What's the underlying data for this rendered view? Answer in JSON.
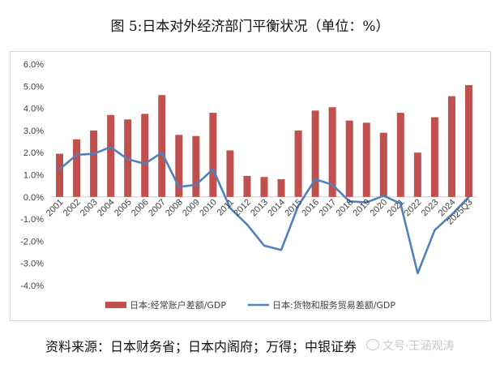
{
  "figure": {
    "title": "图 5:日本对外经济部门平衡状况（单位：%）",
    "source": "资料来源：日本财务省；日本内阁府；万得；中银证券",
    "watermark": "文号·王涵观涛"
  },
  "chart_data": {
    "type": "bar+line",
    "categories": [
      "2001",
      "2002",
      "2003",
      "2004",
      "2005",
      "2006",
      "2007",
      "2008",
      "2009",
      "2010",
      "2011",
      "2012",
      "2013",
      "2014",
      "2015",
      "2016",
      "2017",
      "2018",
      "2019",
      "2020",
      "2021",
      "2022",
      "2023",
      "2024",
      "2025Q3"
    ],
    "series": [
      {
        "name": "日本:经常账户差额/GDP",
        "type": "bar",
        "color": "#c0504d",
        "values": [
          1.95,
          2.6,
          3.0,
          3.7,
          3.5,
          3.75,
          4.6,
          2.8,
          2.75,
          3.8,
          2.1,
          0.95,
          0.9,
          0.8,
          3.0,
          3.9,
          4.05,
          3.45,
          3.35,
          2.9,
          3.8,
          2.0,
          3.6,
          4.55,
          5.05
        ]
      },
      {
        "name": "日本:货物和服务贸易差额/GDP",
        "type": "line",
        "color": "#4f81bd",
        "values": [
          1.25,
          1.9,
          1.95,
          2.25,
          1.7,
          1.5,
          2.0,
          0.45,
          0.55,
          1.25,
          -0.5,
          -1.25,
          -2.2,
          -2.4,
          -0.4,
          0.8,
          0.55,
          -0.2,
          -0.25,
          0.05,
          -0.3,
          -3.45,
          -1.5,
          -0.8,
          0.0
        ]
      }
    ],
    "yticks": [
      "6.0%",
      "5.0%",
      "4.0%",
      "3.0%",
      "2.0%",
      "1.0%",
      "0.0%",
      "-1.0%",
      "-2.0%",
      "-3.0%",
      "-4.0%"
    ],
    "ylim": [
      -4,
      6
    ],
    "grid": false,
    "legend_position": "bottom"
  }
}
